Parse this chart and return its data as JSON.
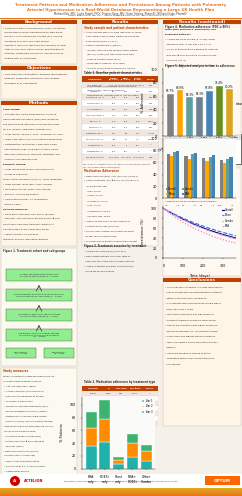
{
  "title_line1": "Treatment Patterns and Medication Adherence and Persistence Among Patients with Pulmonary",
  "title_line2": "Arterial Hypertension in a Real-World Database Representing a Large US Health Plan",
  "title_color": "#FF8C00",
  "header_bg": "#D2691E",
  "header_color": "#FFFFFF",
  "section_bg_light": "#F5F0E8",
  "section_bg_orange_light": "#FFF0DC",
  "poster_bg": "#F5F0E8",
  "border_color": "#8B4513",
  "authors": "Michael Kolt, MD¹; Justin Powell, PhD¹; Eleanor Kong, MS¹; Viren Trebing, PharmD²; William Drake, PharmD²",
  "affiliations": "¹Optum, Eden Prairie, MN, USA; ²Janssen Pharmaceuticals US Inc., South San Francisco, CA, USA",
  "background_header": "Background",
  "background_text": "Pulmonary arterial hypertension (PAH) is a chronic,\nprogressive disease characterized by high blood\npressure in the pulmonary arteries (PAs), causing\nshortness of breath and heart failure.\nResearch from PAH registries has reported survival\nrates of 70%-95%, little is known about treatment\npatterns, medication adherence, and persistence\ntreated with PAH therapies.",
  "objectives_header": "Objectives",
  "objectives_text": "This study was conducted to examine the treatment\npatterns, medication adherence, and changes\ndescribed in PAH treatment.",
  "methods_header": "Methods",
  "methods_text": "A retrospective claims-based analysis using the\nOptum Research Database (ORD) was conducted\nand patients were identified using diagnosis codes\nfor PAH (Primary Pulmonary Hypertension).\nStudy period: January 1, 2014 - December 31, 2018\nIndex date: date of first PAH diagnosis during study\nStudy design: retrospective, multicenter, community-\nbased observational study using administrative claims\nfrom commercial, Medicare Advantage, and\nMedicare supplemental plans.\nStudy period from sponsor and commercial\ninsurance population.",
  "results_header": "Results",
  "results_header2": "Results (continued)",
  "conclusions_header": "Conclusions",
  "conclusions_text": "This study was conducted in a large retrospective\nreal-world database and demonstrates treatment\npatterns and medication adherence.\nPAH patients were predominantly female with a\nmean age of 63.1 years.\nMedication adherence was high across all treatment\nregimens during the study period.\nResults are consistent with higher adherence among\nmonotherapy vs. combination therapy.\nAdditional research is needed to better understand\nfactors affecting the persistence to PAH therapy.",
  "footer_text": "Presented at the 2020 Pulmonary Hypertension Association International Conference; October 29-31, 2020",
  "orange_bar_color": "#E87722",
  "green_section_color": "#8FBC8F",
  "teal_section_color": "#5F9EA0",
  "flowchart_bg": "#90EE90",
  "flowchart_arrow": "#333333",
  "table_header_bg": "#C04000",
  "table_header_color": "#FFFFFF",
  "table_alt_row": "#E8E0D0",
  "chart_colors": [
    "#808080",
    "#FFA500",
    "#5F9EA0",
    "#FFD700"
  ],
  "survival_colors": [
    "#000080",
    "#4169E1",
    "#FF69B4",
    "#DDA0DD"
  ],
  "bar_green": "#3CB371",
  "bar_teal": "#20B2AA",
  "bar_orange": "#FF8C00"
}
